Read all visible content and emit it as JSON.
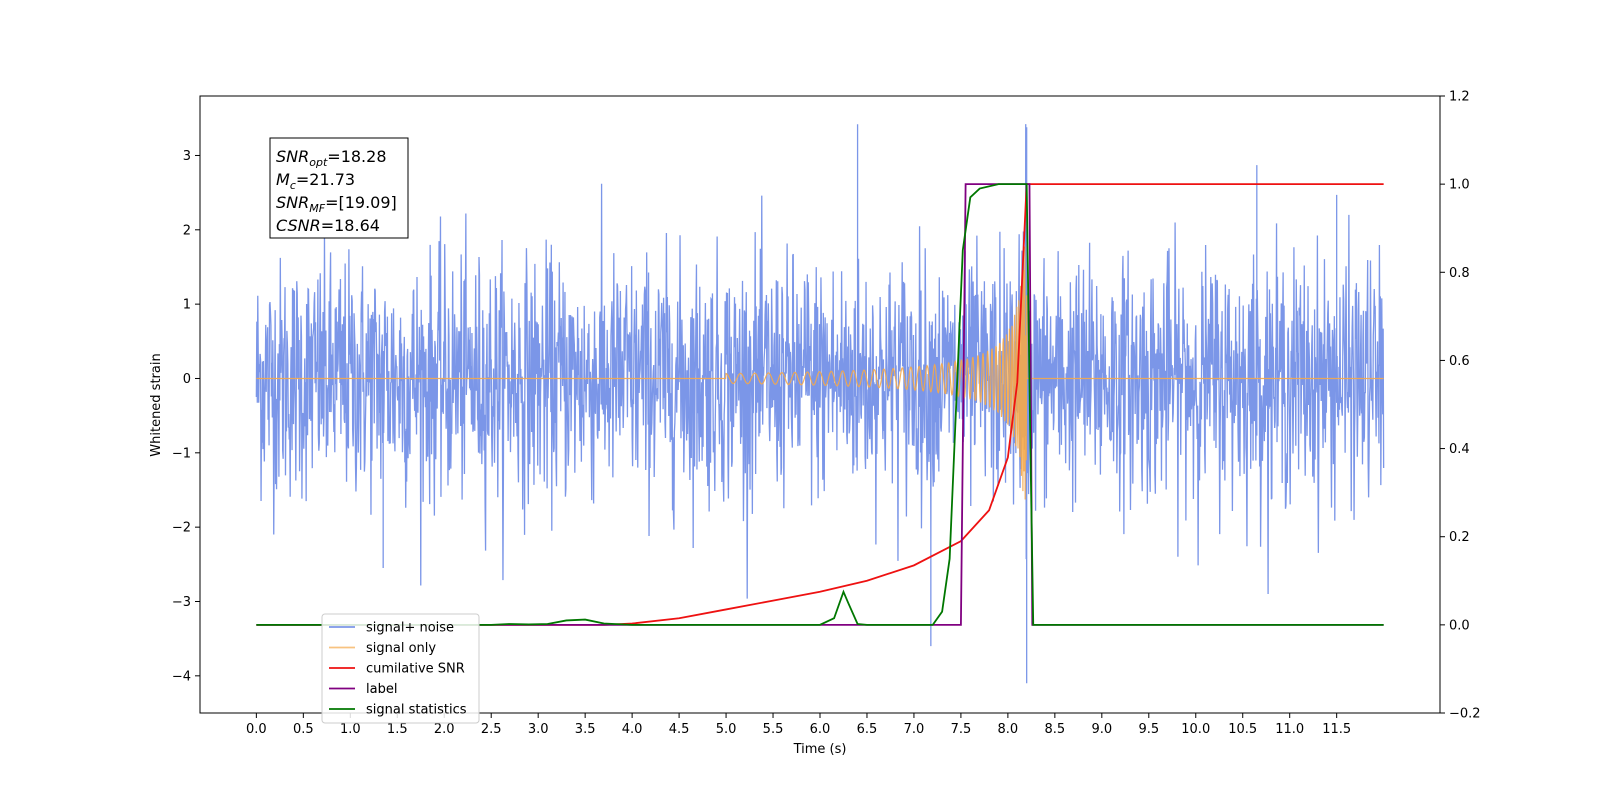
{
  "chart_data": {
    "type": "line",
    "xlabel": "Time (s)",
    "ylabel_left": "Whitened strain",
    "xlim": [
      -0.6,
      12.6
    ],
    "ylim_left": [
      -4.5,
      3.8
    ],
    "ylim_right": [
      -0.2,
      1.2
    ],
    "x_ticks": [
      "0.0",
      "0.5",
      "1.0",
      "1.5",
      "2.0",
      "2.5",
      "3.0",
      "3.5",
      "4.0",
      "4.5",
      "5.0",
      "5.5",
      "6.0",
      "6.5",
      "7.0",
      "7.5",
      "8.0",
      "8.5",
      "9.0",
      "9.5",
      "10.0",
      "10.5",
      "11.0",
      "11.5"
    ],
    "y_left_ticks": [
      "3",
      "2",
      "1",
      "0",
      "−1",
      "−2",
      "−3",
      "−4"
    ],
    "y_right_ticks": [
      "1.2",
      "1.0",
      "0.8",
      "0.6",
      "0.4",
      "0.2",
      "0.0",
      "−0.2"
    ],
    "grid": false,
    "legend_position": "lower-left",
    "annotation": {
      "snr_opt": {
        "sym": "SNR",
        "sub": "opt",
        "value": "=18.28"
      },
      "mc": {
        "sym": "M",
        "sub": "c",
        "value": "=21.73"
      },
      "snr_mf": {
        "sym": "SNR",
        "sub": "MF",
        "value": "=[19.09]"
      },
      "csnr": {
        "sym": "CSNR",
        "value": "=18.64"
      }
    },
    "series": [
      {
        "name": "signal+ noise",
        "color": "#7b96e8",
        "axis": "left",
        "time_range": [
          0.0,
          12.0
        ],
        "noise_std": 0.8,
        "spikes": [
          [
            6.4,
            3.42
          ],
          [
            8.2,
            3.38
          ],
          [
            8.2,
            -4.1
          ],
          [
            7.18,
            -3.6
          ],
          [
            10.65,
            2.87
          ],
          [
            11.5,
            2.47
          ],
          [
            1.35,
            -2.55
          ]
        ]
      },
      {
        "name": "signal only",
        "color": "#f5a94a",
        "axis": "left",
        "chirp_start": 5.0,
        "merger_time": 8.2,
        "peak_amplitude": 2.9
      },
      {
        "name": "cumilative SNR",
        "color": "#ee1111",
        "axis": "right",
        "x": [
          0.0,
          3.7,
          4.0,
          4.5,
          5.0,
          5.5,
          6.0,
          6.5,
          7.0,
          7.5,
          7.8,
          8.0,
          8.1,
          8.2,
          8.25,
          9.0,
          10.0,
          11.0,
          12.0
        ],
        "y": [
          0.0,
          0.0,
          0.003,
          0.015,
          0.035,
          0.055,
          0.075,
          0.1,
          0.135,
          0.19,
          0.26,
          0.38,
          0.55,
          1.0,
          1.0,
          1.0,
          1.0,
          1.0,
          1.0
        ]
      },
      {
        "name": "label",
        "color": "#800080",
        "axis": "right",
        "x": [
          0.0,
          6.0,
          6.35,
          7.5,
          7.55,
          8.23,
          8.26,
          12.0
        ],
        "y": [
          0.0,
          0.0,
          0.0,
          0.0,
          1.0,
          1.0,
          0.0,
          0.0
        ]
      },
      {
        "name": "signal statistics",
        "color": "#007700",
        "axis": "right",
        "x": [
          0.0,
          2.5,
          2.7,
          2.9,
          3.1,
          3.3,
          3.5,
          3.7,
          4.0,
          6.0,
          6.15,
          6.25,
          6.3,
          6.4,
          6.5,
          7.2,
          7.3,
          7.38,
          7.45,
          7.52,
          7.6,
          7.7,
          7.9,
          8.2,
          8.24,
          8.27,
          12.0
        ],
        "y": [
          0.0,
          0.0,
          0.002,
          0.001,
          0.002,
          0.01,
          0.012,
          0.003,
          0.0,
          0.0,
          0.015,
          0.075,
          0.05,
          0.002,
          0.0,
          0.0,
          0.03,
          0.15,
          0.5,
          0.85,
          0.97,
          0.99,
          1.0,
          1.0,
          0.4,
          0.0,
          0.0
        ]
      }
    ],
    "legend_overlay_labels": [
      "label",
      "signal statistics"
    ]
  }
}
